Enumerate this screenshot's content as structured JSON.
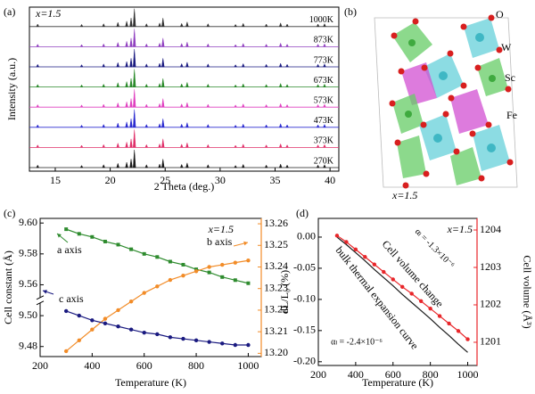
{
  "chart_data": [
    {
      "type": "ridgeline",
      "panel": "(a)",
      "note": "x=1.5",
      "xlabel": "2 Theta (deg.)",
      "ylabel": "Intensity (a.u.)",
      "xlim": [
        12.65,
        40.8
      ],
      "xticks": [
        15,
        20,
        25,
        30,
        35,
        40
      ],
      "x": [
        13.4,
        17.4,
        19.4,
        20.7,
        21.5,
        21.9,
        22.2,
        23.3,
        24.5,
        24.8,
        26.5,
        27.0,
        28.9,
        31.4,
        32.1,
        34.2,
        35.5,
        36.1,
        38.9,
        39.5
      ],
      "series": [
        {
          "name": "270K",
          "color": "#1a1a1a",
          "values": [
            14,
            12,
            16,
            24,
            30,
            48,
            100,
            16,
            20,
            48,
            18,
            26,
            16,
            12,
            18,
            14,
            20,
            14,
            14,
            16
          ]
        },
        {
          "name": "373K",
          "color": "#e0306a",
          "values": [
            14,
            12,
            16,
            24,
            30,
            48,
            100,
            16,
            20,
            48,
            18,
            26,
            16,
            12,
            18,
            14,
            20,
            14,
            14,
            16
          ]
        },
        {
          "name": "473K",
          "color": "#2b2bd0",
          "values": [
            14,
            12,
            16,
            24,
            30,
            48,
            100,
            16,
            20,
            48,
            18,
            26,
            16,
            12,
            18,
            14,
            20,
            14,
            14,
            16
          ]
        },
        {
          "name": "573K",
          "color": "#e040c0",
          "values": [
            14,
            12,
            16,
            24,
            30,
            48,
            100,
            16,
            20,
            48,
            18,
            26,
            16,
            12,
            18,
            14,
            20,
            14,
            14,
            16
          ]
        },
        {
          "name": "673K",
          "color": "#2a8a2a",
          "values": [
            14,
            12,
            16,
            24,
            30,
            48,
            100,
            16,
            20,
            48,
            18,
            26,
            16,
            12,
            18,
            14,
            20,
            14,
            14,
            16
          ]
        },
        {
          "name": "773K",
          "color": "#1a1a80",
          "values": [
            14,
            12,
            16,
            24,
            30,
            48,
            100,
            16,
            20,
            48,
            18,
            26,
            16,
            12,
            18,
            14,
            20,
            14,
            14,
            16
          ]
        },
        {
          "name": "873K",
          "color": "#9040c0",
          "values": [
            14,
            12,
            16,
            24,
            30,
            48,
            100,
            16,
            20,
            48,
            18,
            26,
            16,
            12,
            18,
            14,
            20,
            14,
            14,
            16
          ]
        },
        {
          "name": "1000K",
          "color": "#333333",
          "values": [
            14,
            12,
            16,
            24,
            30,
            48,
            100,
            16,
            20,
            48,
            18,
            26,
            16,
            12,
            18,
            14,
            20,
            14,
            14,
            16
          ]
        }
      ]
    },
    {
      "type": "line",
      "panel": "(c)",
      "note": "x=1.5",
      "xlabel": "Temperature (K)",
      "ylabel": "Cell constant (Å)",
      "xlim": [
        200,
        1050
      ],
      "xticks": [
        200,
        400,
        600,
        800,
        1000
      ],
      "ylim": [
        9.4735,
        9.603
      ],
      "ybreak": [
        9.51,
        9.55
      ],
      "yticks": [
        9.48,
        {
          "value": 9.5,
          "label": "9.50"
        },
        9.56,
        9.58,
        {
          "value": 9.6,
          "label": "9.60"
        }
      ],
      "y2lim": [
        13.1985,
        13.2625
      ],
      "y2ticks": [
        {
          "value": 13.2,
          "label": "13.20"
        },
        13.21,
        13.22,
        13.23,
        13.24,
        13.25,
        13.26
      ],
      "x": [
        300,
        350,
        400,
        450,
        500,
        550,
        600,
        650,
        700,
        750,
        800,
        850,
        900,
        950,
        1000
      ],
      "series": [
        {
          "name": "a axis",
          "color": "#2e8b2e",
          "marker": "square",
          "values": [
            9.596,
            9.593,
            9.591,
            9.588,
            9.586,
            9.583,
            9.58,
            9.578,
            9.575,
            9.573,
            9.57,
            9.568,
            9.565,
            9.563,
            9.561
          ]
        },
        {
          "name": "b axis",
          "color": "#f28c28",
          "marker": "circle",
          "axis": "y2",
          "values": [
            13.201,
            13.206,
            13.211,
            13.216,
            13.22,
            13.224,
            13.228,
            13.231,
            13.234,
            13.236,
            13.238,
            13.24,
            13.241,
            13.242,
            13.243
          ]
        },
        {
          "name": "c axis",
          "color": "#1a1a80",
          "marker": "circle",
          "values": [
            9.503,
            9.5,
            9.497,
            9.495,
            9.493,
            9.491,
            9.489,
            9.488,
            9.486,
            9.485,
            9.484,
            9.483,
            9.482,
            9.481,
            9.481
          ]
        }
      ]
    },
    {
      "type": "line",
      "panel": "(d)",
      "note": "x=1.5",
      "xlabel": "Temperature (K)",
      "ylabel": "dL/L₀ (%)",
      "y2label": "Cell volume (Å³)",
      "xlim": [
        200,
        1050
      ],
      "xticks": [
        200,
        400,
        600,
        800,
        1000
      ],
      "ylim": [
        -0.206,
        0.03
      ],
      "yticks": [
        {
          "value": 0,
          "label": "0.00"
        },
        {
          "value": -0.05,
          "label": "-0.05"
        },
        {
          "value": -0.1,
          "label": "-0.10"
        },
        {
          "value": -0.15,
          "label": "-0.15"
        },
        {
          "value": -0.2,
          "label": "-0.20"
        }
      ],
      "y2lim": [
        1200.38,
        1204.31
      ],
      "y2ticks": [
        1201,
        1202,
        1203,
        1204
      ],
      "x": [
        300,
        350,
        400,
        450,
        500,
        550,
        600,
        650,
        700,
        750,
        800,
        850,
        900,
        950,
        1000
      ],
      "series": [
        {
          "name": "bulk thermal expansion curve",
          "annotation": "αₗ = -2.4×10⁻⁶",
          "color": "#1a1a1a",
          "values": [
            0.0,
            -0.012,
            -0.025,
            -0.038,
            -0.052,
            -0.065,
            -0.078,
            -0.092,
            -0.105,
            -0.118,
            -0.131,
            -0.145,
            -0.158,
            -0.172,
            -0.185
          ]
        },
        {
          "name": "Cell volume change",
          "annotation": "αₗ = -1.3×10⁻⁶",
          "color": "#e8262a",
          "marker": "circle",
          "axis": "y2",
          "values": [
            1203.85,
            1203.68,
            1203.48,
            1203.28,
            1203.08,
            1202.88,
            1202.68,
            1202.48,
            1202.3,
            1202.1,
            1201.9,
            1201.7,
            1201.5,
            1201.3,
            1201.08
          ]
        }
      ]
    }
  ],
  "structure": {
    "panel": "(b)",
    "labels": [
      "O",
      "W",
      "Sc",
      "Fe"
    ],
    "note": "x=1.5"
  }
}
